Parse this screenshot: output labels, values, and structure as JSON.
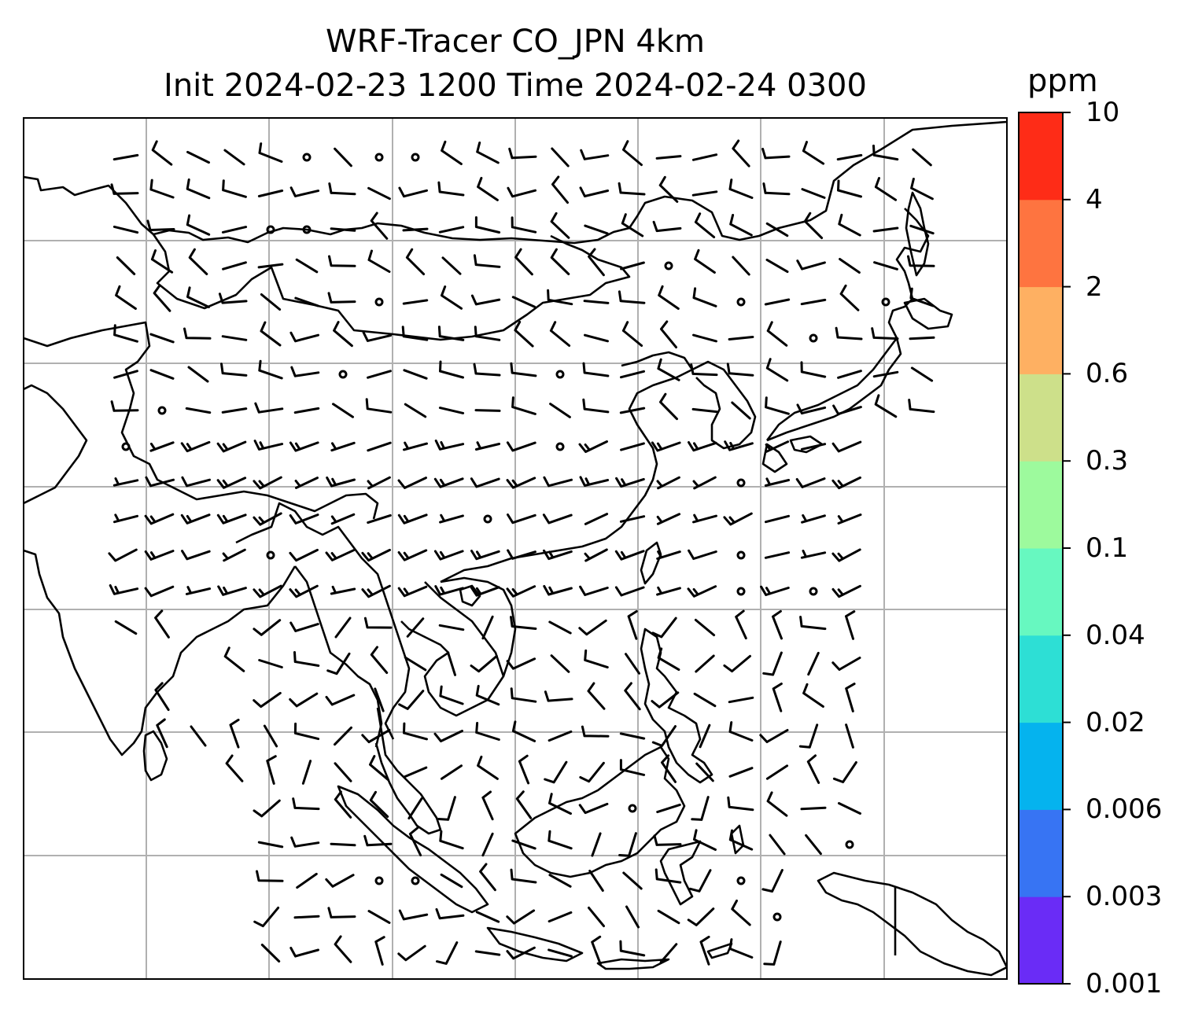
{
  "title": {
    "line1": "WRF-Tracer CO_JPN 4km",
    "line2": "Init 2024-02-23 1200 Time 2024-02-24 0300"
  },
  "colorbar": {
    "unit": "ppm",
    "ticks": [
      "0.001",
      "0.003",
      "0.006",
      "0.02",
      "0.04",
      "0.1",
      "0.3",
      "0.6",
      "2",
      "4",
      "10"
    ],
    "colors": [
      "#6a2cf6",
      "#3774f3",
      "#05b3ee",
      "#2ddfd5",
      "#67f8c0",
      "#9dfa9d",
      "#cde08a",
      "#feb062",
      "#fe7440",
      "#fe2c17"
    ]
  },
  "map": {
    "coastline_color": "#000000",
    "gridline_color": "#b0b0b0",
    "grid": true,
    "overlay": "wind barbs",
    "features": [
      "coastlines",
      "country borders"
    ]
  }
}
